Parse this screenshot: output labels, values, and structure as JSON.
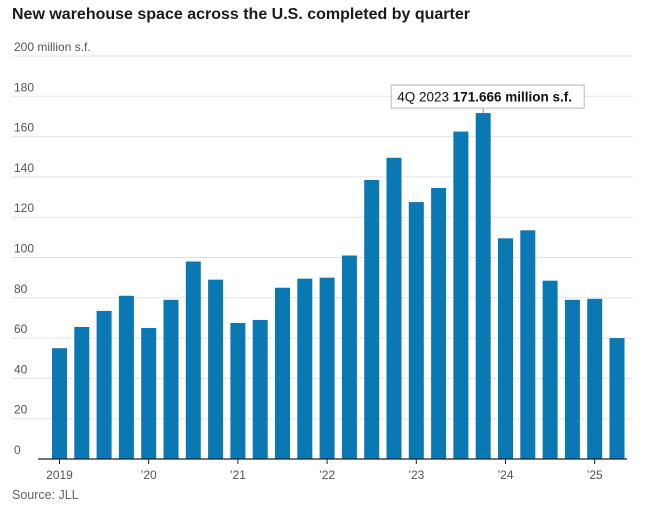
{
  "title": "New warehouse space across the U.S. completed by quarter",
  "source": "Source: JLL",
  "colors": {
    "bar": "#0a78b3",
    "grid": "#e3e3e3"
  },
  "chart_data": {
    "type": "bar",
    "title": "New warehouse space across the U.S. completed by quarter",
    "ylabel": "",
    "y_unit_label": "200 million s.f.",
    "ylim": [
      0,
      200
    ],
    "y_ticks": [
      {
        "value": 0,
        "label": "0"
      },
      {
        "value": 20,
        "label": "20"
      },
      {
        "value": 40,
        "label": "40"
      },
      {
        "value": 60,
        "label": "60"
      },
      {
        "value": 80,
        "label": "80"
      },
      {
        "value": 100,
        "label": "100"
      },
      {
        "value": 120,
        "label": "120"
      },
      {
        "value": 140,
        "label": "140"
      },
      {
        "value": 160,
        "label": "160"
      },
      {
        "value": 180,
        "label": "180"
      },
      {
        "value": 200,
        "label": "200 million s.f."
      }
    ],
    "categories": [
      "1Q 2019",
      "2Q 2019",
      "3Q 2019",
      "4Q 2019",
      "1Q 2020",
      "2Q 2020",
      "3Q 2020",
      "4Q 2020",
      "1Q 2021",
      "2Q 2021",
      "3Q 2021",
      "4Q 2021",
      "1Q 2022",
      "2Q 2022",
      "3Q 2022",
      "4Q 2022",
      "1Q 2023",
      "2Q 2023",
      "3Q 2023",
      "4Q 2023",
      "1Q 2024",
      "2Q 2024",
      "3Q 2024",
      "4Q 2024",
      "1Q 2025",
      "2Q 2025"
    ],
    "values": [
      55,
      65.5,
      73.5,
      81,
      65,
      79,
      98,
      89,
      67.5,
      69,
      85,
      89.5,
      90,
      101,
      138.5,
      149.5,
      127.5,
      134.5,
      162.5,
      171.666,
      109.5,
      113.5,
      88.5,
      79,
      79.5,
      60
    ],
    "x_tick_labels": [
      {
        "index": 0,
        "label": "2019"
      },
      {
        "index": 4,
        "label": "’20"
      },
      {
        "index": 8,
        "label": "’21"
      },
      {
        "index": 12,
        "label": "’22"
      },
      {
        "index": 16,
        "label": "’23"
      },
      {
        "index": 20,
        "label": "’24"
      },
      {
        "index": 24,
        "label": "’25"
      }
    ],
    "annotation": {
      "index": 19,
      "label": "4Q 2023",
      "value_text": "171.666 million s.f."
    },
    "grid": true
  }
}
